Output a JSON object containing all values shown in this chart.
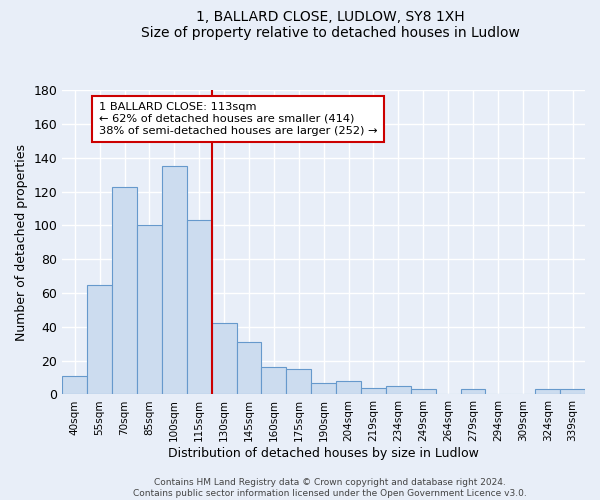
{
  "title": "1, BALLARD CLOSE, LUDLOW, SY8 1XH",
  "subtitle": "Size of property relative to detached houses in Ludlow",
  "xlabel": "Distribution of detached houses by size in Ludlow",
  "ylabel": "Number of detached properties",
  "bar_labels": [
    "40sqm",
    "55sqm",
    "70sqm",
    "85sqm",
    "100sqm",
    "115sqm",
    "130sqm",
    "145sqm",
    "160sqm",
    "175sqm",
    "190sqm",
    "204sqm",
    "219sqm",
    "234sqm",
    "249sqm",
    "264sqm",
    "279sqm",
    "294sqm",
    "309sqm",
    "324sqm",
    "339sqm"
  ],
  "bar_heights": [
    11,
    65,
    123,
    100,
    135,
    103,
    42,
    31,
    16,
    15,
    7,
    8,
    4,
    5,
    3,
    0,
    3,
    0,
    0,
    3,
    3
  ],
  "bar_color": "#ccdcef",
  "bar_edge_color": "#6699cc",
  "vline_color": "#cc0000",
  "annotation_title": "1 BALLARD CLOSE: 113sqm",
  "annotation_line1": "← 62% of detached houses are smaller (414)",
  "annotation_line2": "38% of semi-detached houses are larger (252) →",
  "annotation_box_color": "#ffffff",
  "annotation_box_edge": "#cc0000",
  "ylim": [
    0,
    180
  ],
  "yticks": [
    0,
    20,
    40,
    60,
    80,
    100,
    120,
    140,
    160,
    180
  ],
  "footer1": "Contains HM Land Registry data © Crown copyright and database right 2024.",
  "footer2": "Contains public sector information licensed under the Open Government Licence v3.0.",
  "background_color": "#e8eef8",
  "plot_bg_color": "#e8eef8",
  "grid_color": "#ffffff"
}
